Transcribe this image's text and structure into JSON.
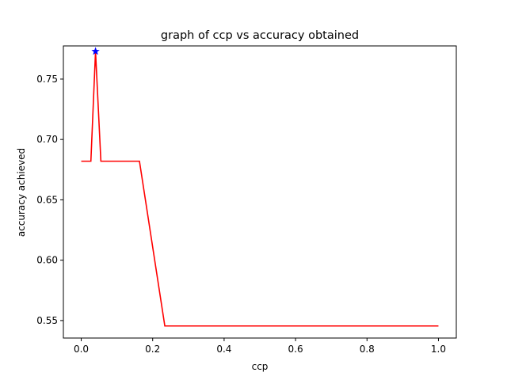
{
  "chart_data": {
    "type": "line",
    "title": "graph of ccp vs accuracy obtained",
    "xlabel": "ccp",
    "ylabel": "accuracy achieved",
    "xlim": [
      -0.05,
      1.05
    ],
    "ylim": [
      0.5355,
      0.7775
    ],
    "xticks": [
      0.0,
      0.2,
      0.4,
      0.6,
      0.8,
      1.0
    ],
    "xtick_labels": [
      "0.0",
      "0.2",
      "0.4",
      "0.6",
      "0.8",
      "1.0"
    ],
    "yticks": [
      0.55,
      0.6,
      0.65,
      0.7,
      0.75
    ],
    "ytick_labels": [
      "0.55",
      "0.60",
      "0.65",
      "0.70",
      "0.75"
    ],
    "grid": false,
    "series": [
      {
        "color": "#ff0000",
        "x": [
          0.0,
          0.027,
          0.04,
          0.055,
          0.163,
          0.234,
          1.0
        ],
        "y": [
          0.682,
          0.682,
          0.773,
          0.682,
          0.682,
          0.5455,
          0.5455
        ]
      }
    ],
    "markers": [
      {
        "marker": "star",
        "color": "#0000ff",
        "x": 0.04,
        "y": 0.773
      }
    ]
  }
}
